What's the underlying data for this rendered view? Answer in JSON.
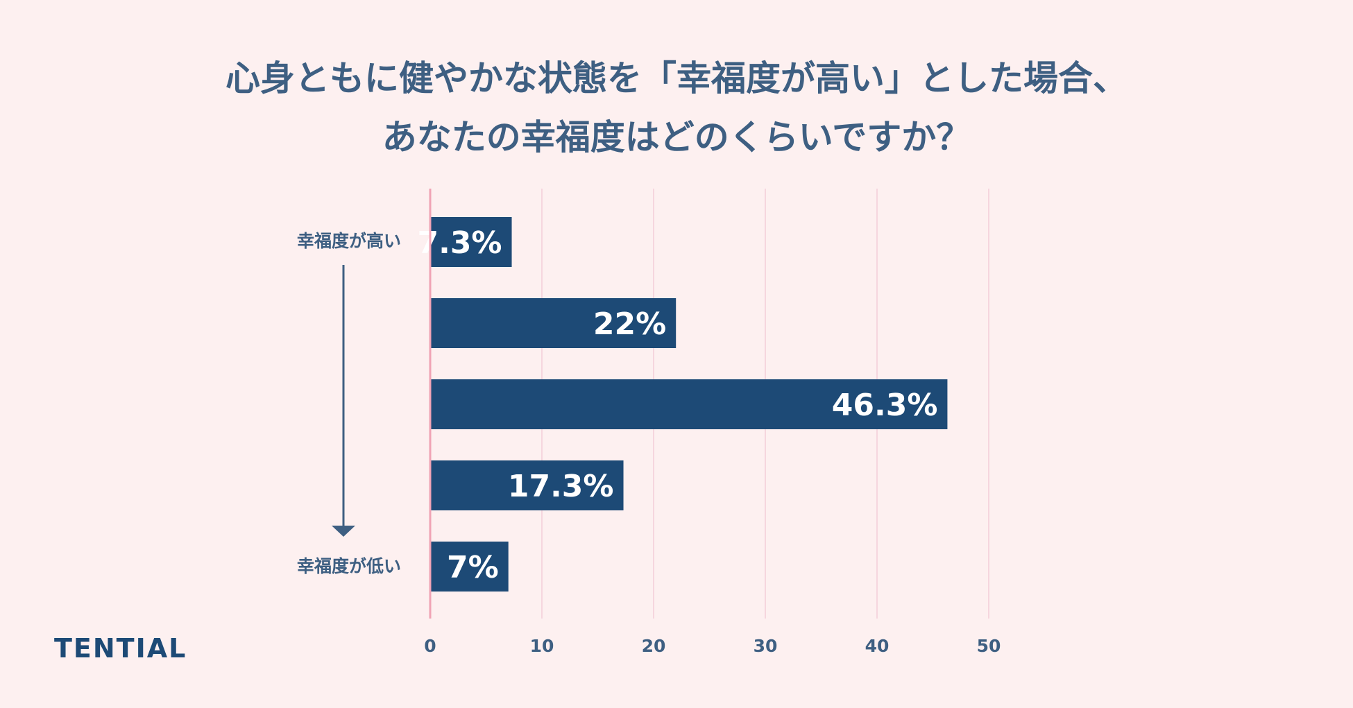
{
  "title_lines": [
    "心身ともに健やかな状態を「幸福度が高い」とした場合、",
    "あなたの幸福度はどのくらいですか？"
  ],
  "brand": "TENTIAL",
  "side_labels": {
    "top": "幸福度が高い",
    "bottom": "幸福度が低い"
  },
  "colors": {
    "background": "#fdf0f0",
    "bar": "#1d4a76",
    "title": "#3e5f82",
    "axis_line": "#f0a3b5",
    "grid": "#f6d6de",
    "bar_label": "#ffffff"
  },
  "chart_data": {
    "type": "bar",
    "orientation": "horizontal",
    "title": "心身ともに健やかな状態を「幸福度が高い」とした場合、あなたの幸福度はどのくらいですか？",
    "categories": [
      "",
      "",
      "",
      "",
      ""
    ],
    "values": [
      7.3,
      22,
      46.3,
      17.3,
      7
    ],
    "data_labels": [
      "7.3%",
      "22%",
      "46.3%",
      "17.3%",
      "7%"
    ],
    "xlim": [
      0,
      50
    ],
    "x_ticks": [
      0,
      10,
      20,
      30,
      40,
      50
    ],
    "x_tick_labels": [
      "0",
      "10",
      "20",
      "30",
      "40",
      "50"
    ],
    "xlabel": "",
    "ylabel": "",
    "grid": true,
    "legend": "none"
  }
}
